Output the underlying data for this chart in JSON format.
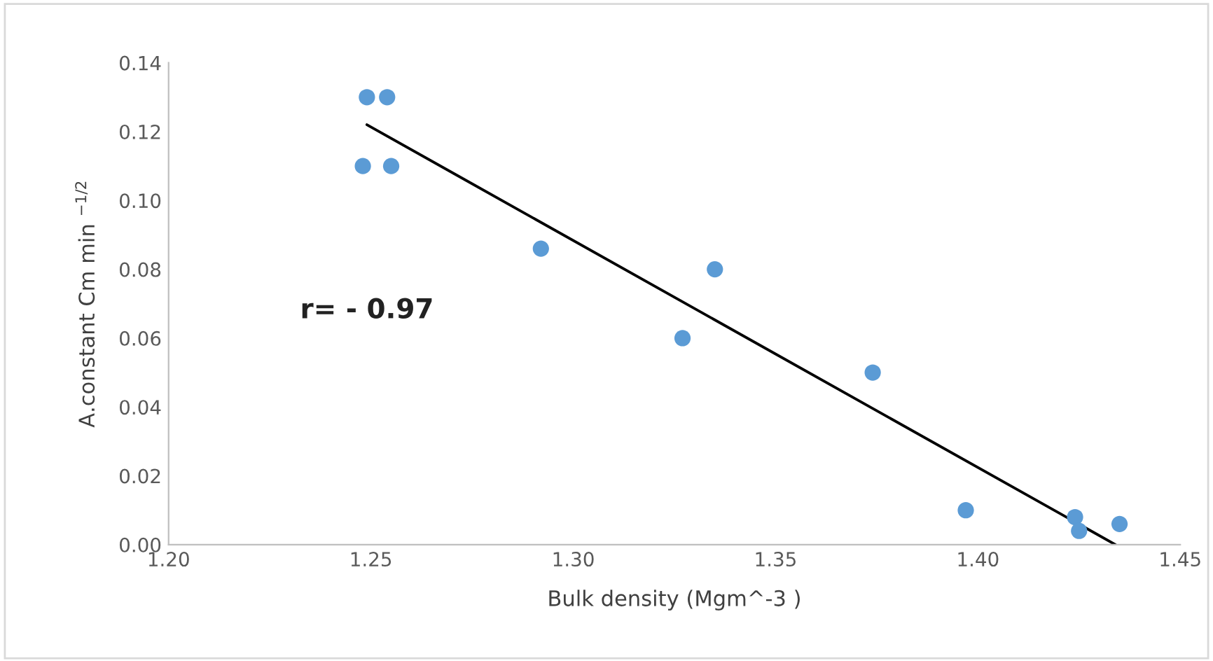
{
  "chart_data": {
    "type": "scatter",
    "xlabel": "Bulk density (Mgm^-3 )",
    "ylabel": "A.constant Cm min $^{−1/2}$",
    "annotations": [
      "r= - 0.97"
    ],
    "series": [
      {
        "color": "#5b9bd5",
        "marker": "circle",
        "x": [
          1.249,
          1.254,
          1.248,
          1.255,
          1.292,
          1.327,
          1.335,
          1.374,
          1.397,
          1.424,
          1.425,
          1.435
        ],
        "values": [
          0.13,
          0.13,
          0.11,
          0.11,
          0.086,
          0.06,
          0.08,
          0.05,
          0.01,
          0.008,
          0.004,
          0.006
        ]
      },
      {
        "type": "line",
        "color": "#000000",
        "x": [
          1.249,
          1.434
        ],
        "values": [
          0.122,
          0.0
        ]
      }
    ],
    "xlim": [
      1.2,
      1.45
    ],
    "xticks": [
      {
        "value": 1.2,
        "label": "1.20"
      },
      {
        "value": 1.25,
        "label": "1.25"
      },
      {
        "value": 1.3,
        "label": "1.30"
      },
      {
        "value": 1.35,
        "label": "1.35"
      },
      {
        "value": 1.4,
        "label": "1.40"
      },
      {
        "value": 1.45,
        "label": "1.45"
      }
    ],
    "ylim": [
      0,
      0.14
    ],
    "yticks": [
      {
        "value": 0,
        "label": "0.00"
      },
      {
        "value": 0.02,
        "label": "0.02"
      },
      {
        "value": 0.04,
        "label": "0.04"
      },
      {
        "value": 0.06,
        "label": "0.06"
      },
      {
        "value": 0.08,
        "label": "0.08"
      },
      {
        "value": 0.1,
        "label": "0.10"
      },
      {
        "value": 0.12,
        "label": "0.12"
      },
      {
        "value": 0.14,
        "label": "0.14"
      }
    ],
    "grid": false,
    "legend": false
  }
}
